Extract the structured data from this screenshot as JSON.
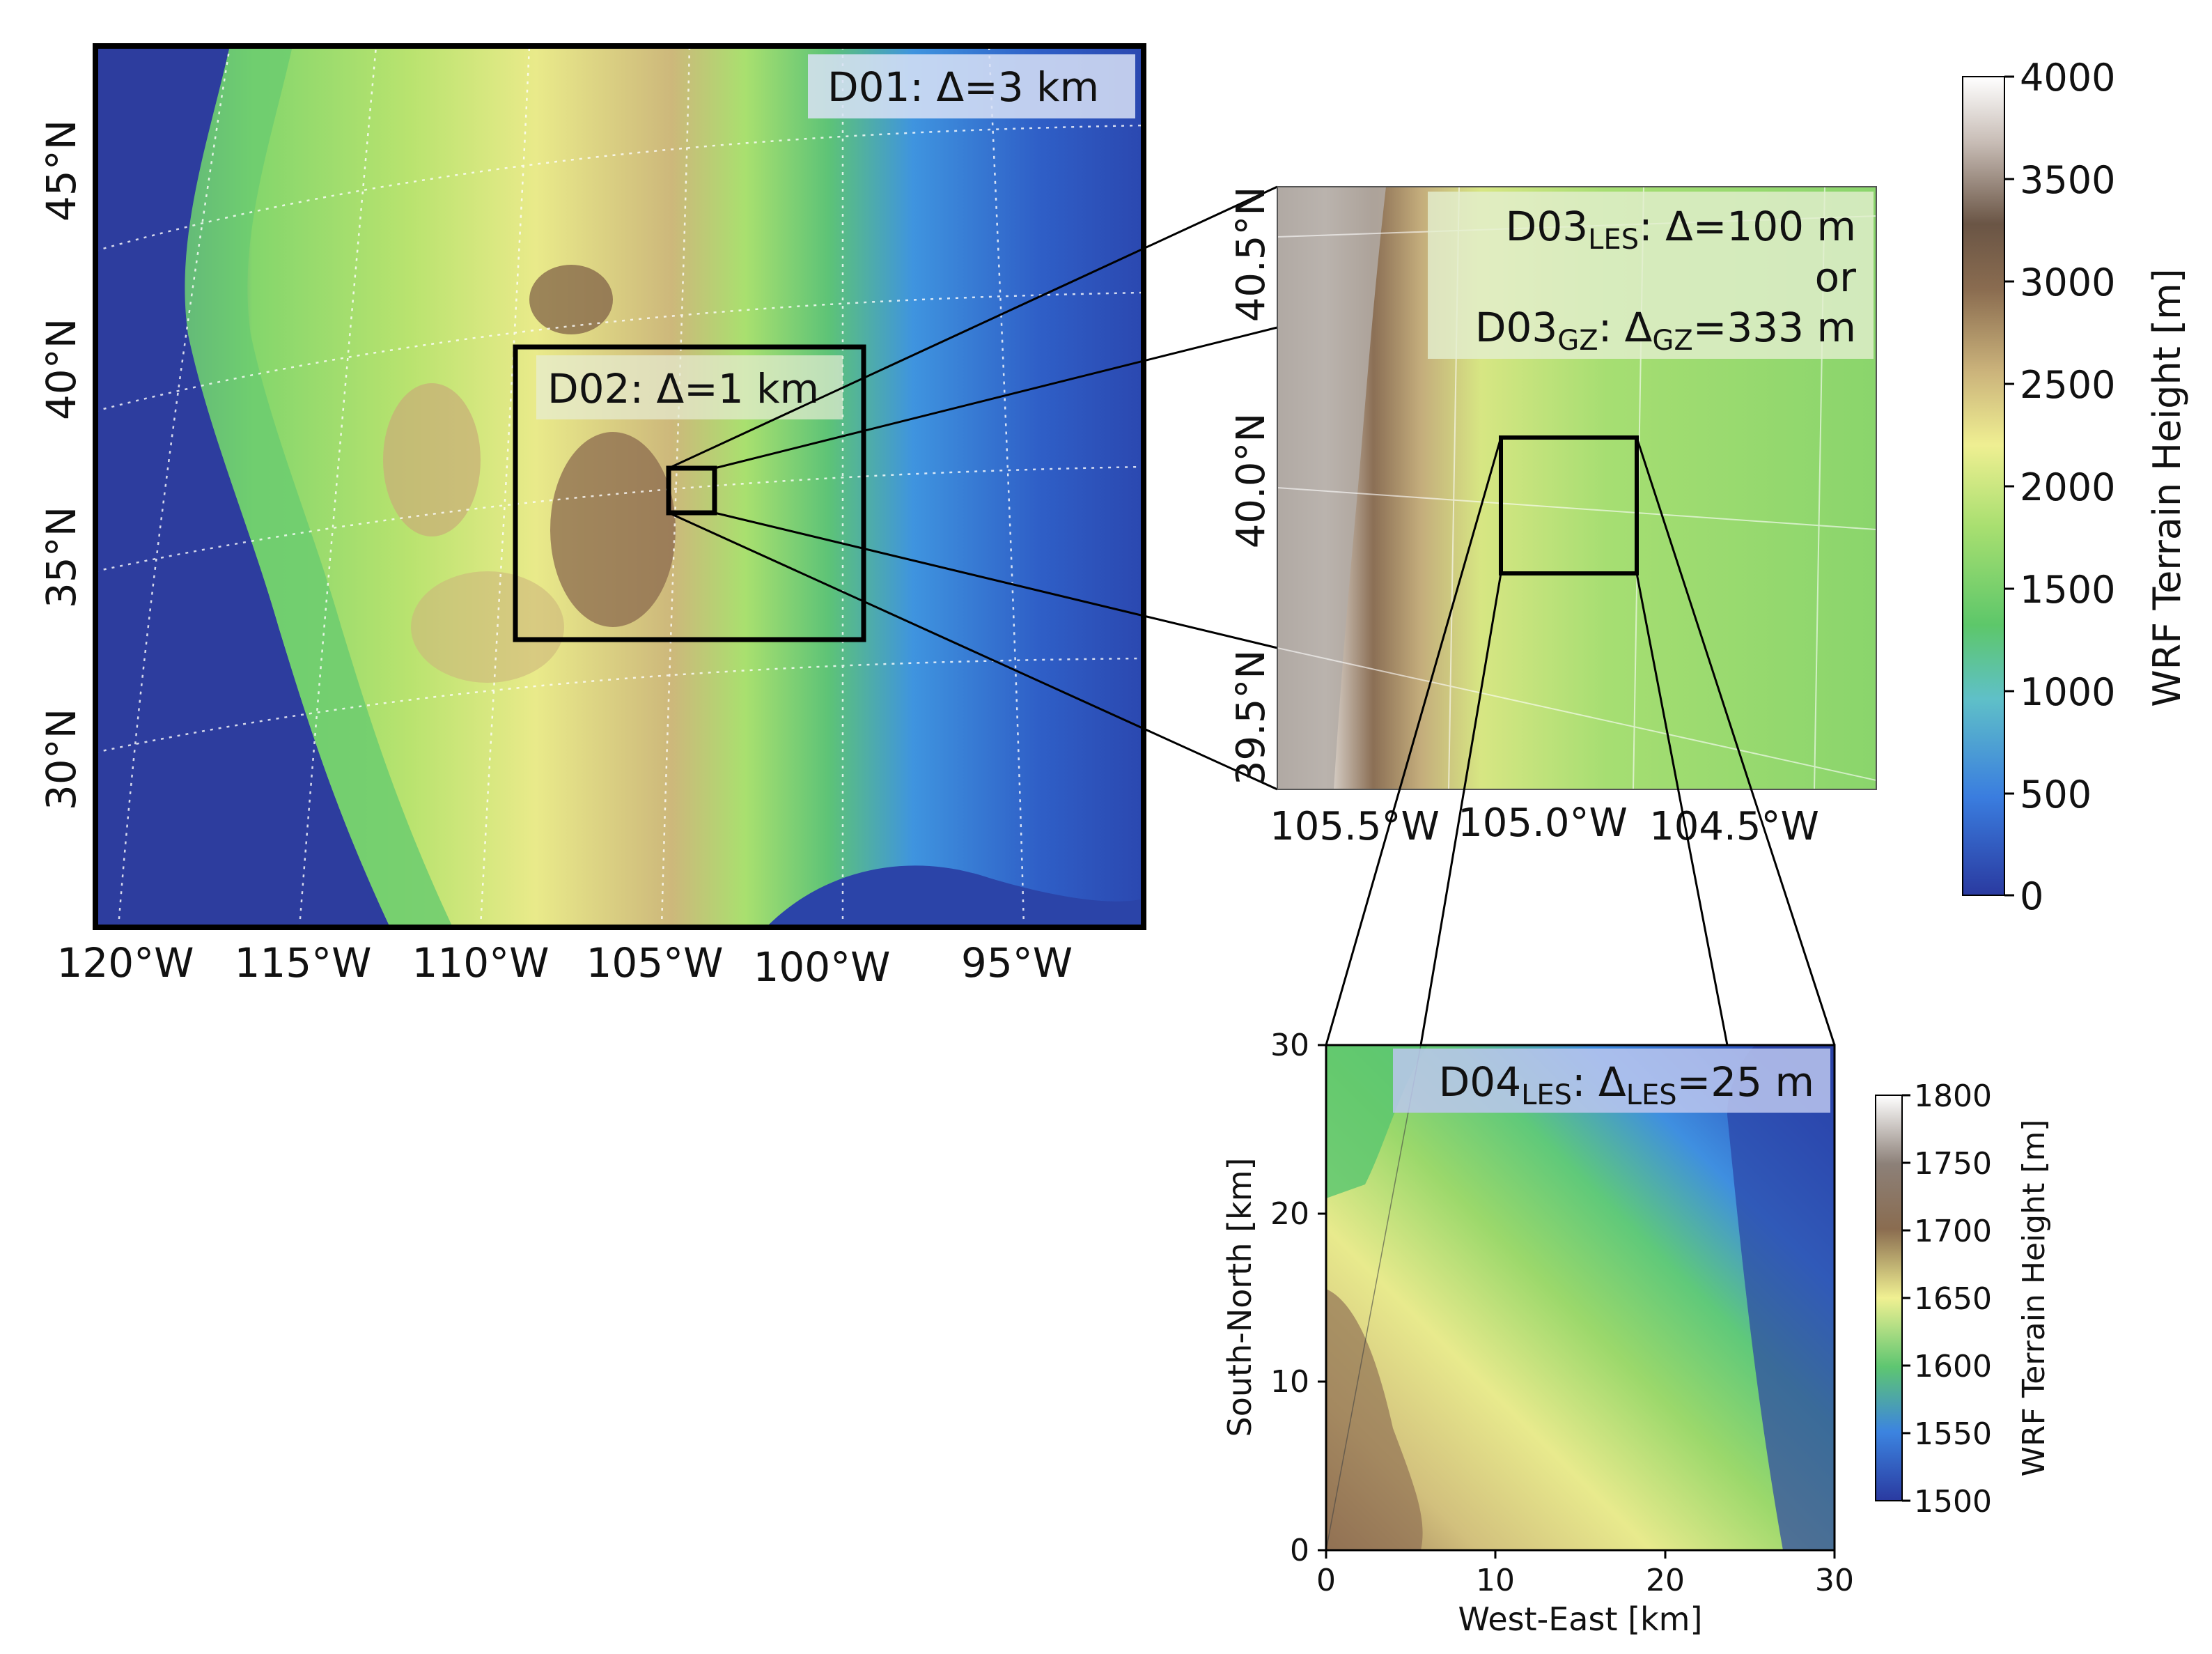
{
  "colors": {
    "terrain_stops": [
      "#2a3aa0",
      "#2f66d2",
      "#4a9ee2",
      "#57c46e",
      "#93da6a",
      "#eff08e",
      "#cdb87b",
      "#8c6f52",
      "#5f4a3a",
      "#c9bfb8",
      "#ffffff"
    ],
    "frame": "#000000",
    "label_box": "#d9e2f6",
    "graticule": "#ffffff"
  },
  "panels": {
    "d01": {
      "label": "D01: Δ=3 km",
      "lat_labels": [
        "45°N",
        "40°N",
        "35°N",
        "30°N"
      ],
      "lon_labels": [
        "120°W",
        "115°W",
        "110°W",
        "105°W",
        "100°W",
        "95°W"
      ],
      "inset_label": "D02: Δ=1 km"
    },
    "d03": {
      "label_les_main": "D03",
      "label_les_sub": "LES",
      "label_les_tail": ": Δ=100 m",
      "label_or": "or",
      "label_gz_main": "D03",
      "label_gz_sub": "GZ",
      "label_gz_mid": ": Δ",
      "label_gz_sub2": "GZ",
      "label_gz_tail": "=333 m",
      "lat_labels": [
        "40.5°N",
        "40.0°N",
        "39.5°N"
      ],
      "lon_labels": [
        "105.5°W",
        "105.0°W",
        "104.5°W"
      ]
    },
    "d04": {
      "label_main": "D04",
      "label_sub": "LES",
      "label_mid": ": Δ",
      "label_sub2": "LES",
      "label_tail": "=25 m",
      "xlabel": "West-East [km]",
      "ylabel": "South-North [km]",
      "x_ticks": [
        "0",
        "10",
        "20",
        "30"
      ],
      "y_ticks": [
        "0",
        "10",
        "20",
        "30"
      ]
    }
  },
  "colorbars": {
    "main": {
      "label": "WRF Terrain Height [m]",
      "ticks": [
        "4000",
        "3500",
        "3000",
        "2500",
        "2000",
        "1500",
        "1000",
        "500",
        "0"
      ]
    },
    "d04": {
      "label": "WRF Terrain Height [m]",
      "ticks": [
        "1800",
        "1750",
        "1700",
        "1650",
        "1600",
        "1550",
        "1500"
      ]
    }
  }
}
